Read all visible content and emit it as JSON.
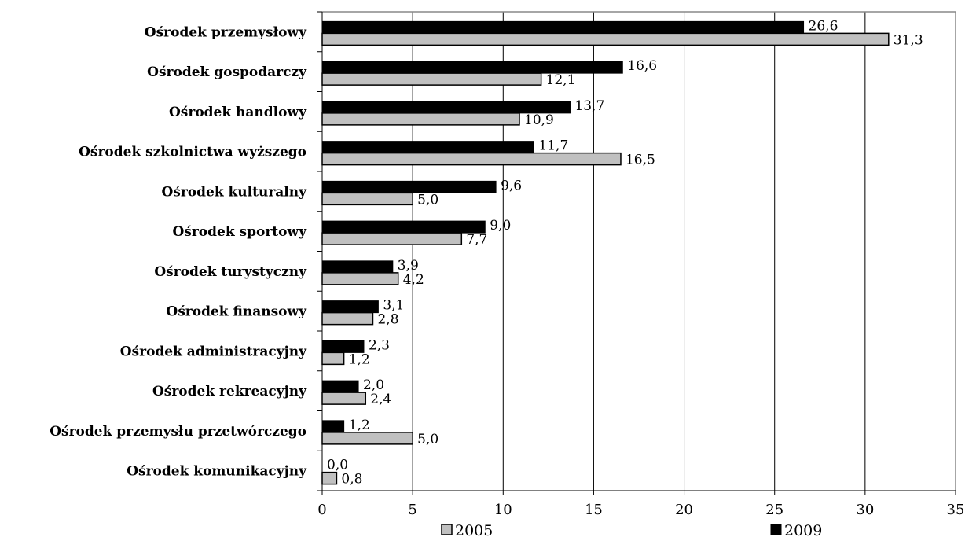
{
  "chart_data": {
    "type": "bar",
    "orientation": "horizontal",
    "categories": [
      "Ośrodek przemysłowy",
      "Ośrodek gospodarczy",
      "Ośrodek handlowy",
      "Ośrodek szkolnictwa wyższego",
      "Ośrodek kulturalny",
      "Ośrodek sportowy",
      "Ośrodek turystyczny",
      "Ośrodek finansowy",
      "Ośrodek administracyjny",
      "Ośrodek rekreacyjny",
      "Ośrodek przemysłu przetwórczego",
      "Ośrodek komunikacyjny"
    ],
    "series": [
      {
        "name": "2005",
        "color": "#c0c0c0",
        "values": [
          31.3,
          12.1,
          10.9,
          16.5,
          5.0,
          7.7,
          4.2,
          2.8,
          1.2,
          2.4,
          5.0,
          0.8
        ],
        "labels": [
          "31,3",
          "12,1",
          "10,9",
          "16,5",
          "5,0",
          "7,7",
          "4,2",
          "2,8",
          "1,2",
          "2,4",
          "5,0",
          "0,8"
        ]
      },
      {
        "name": "2009",
        "color": "#000000",
        "values": [
          26.6,
          16.6,
          13.7,
          11.7,
          9.6,
          9.0,
          3.9,
          3.1,
          2.3,
          2.0,
          1.2,
          0.0
        ],
        "labels": [
          "26,6",
          "16,6",
          "13,7",
          "11,7",
          "9,6",
          "9,0",
          "3,9",
          "3,1",
          "2,3",
          "2,0",
          "1,2",
          "0,0"
        ]
      }
    ],
    "xlim": [
      0,
      35
    ],
    "xticks": [
      0,
      5,
      10,
      15,
      20,
      25,
      30,
      35
    ],
    "xtick_labels": [
      "0",
      "5",
      "10",
      "15",
      "20",
      "25",
      "30",
      "35"
    ],
    "grid": "vertical",
    "legend": "bottom",
    "title": "",
    "xlabel": "",
    "ylabel": ""
  }
}
